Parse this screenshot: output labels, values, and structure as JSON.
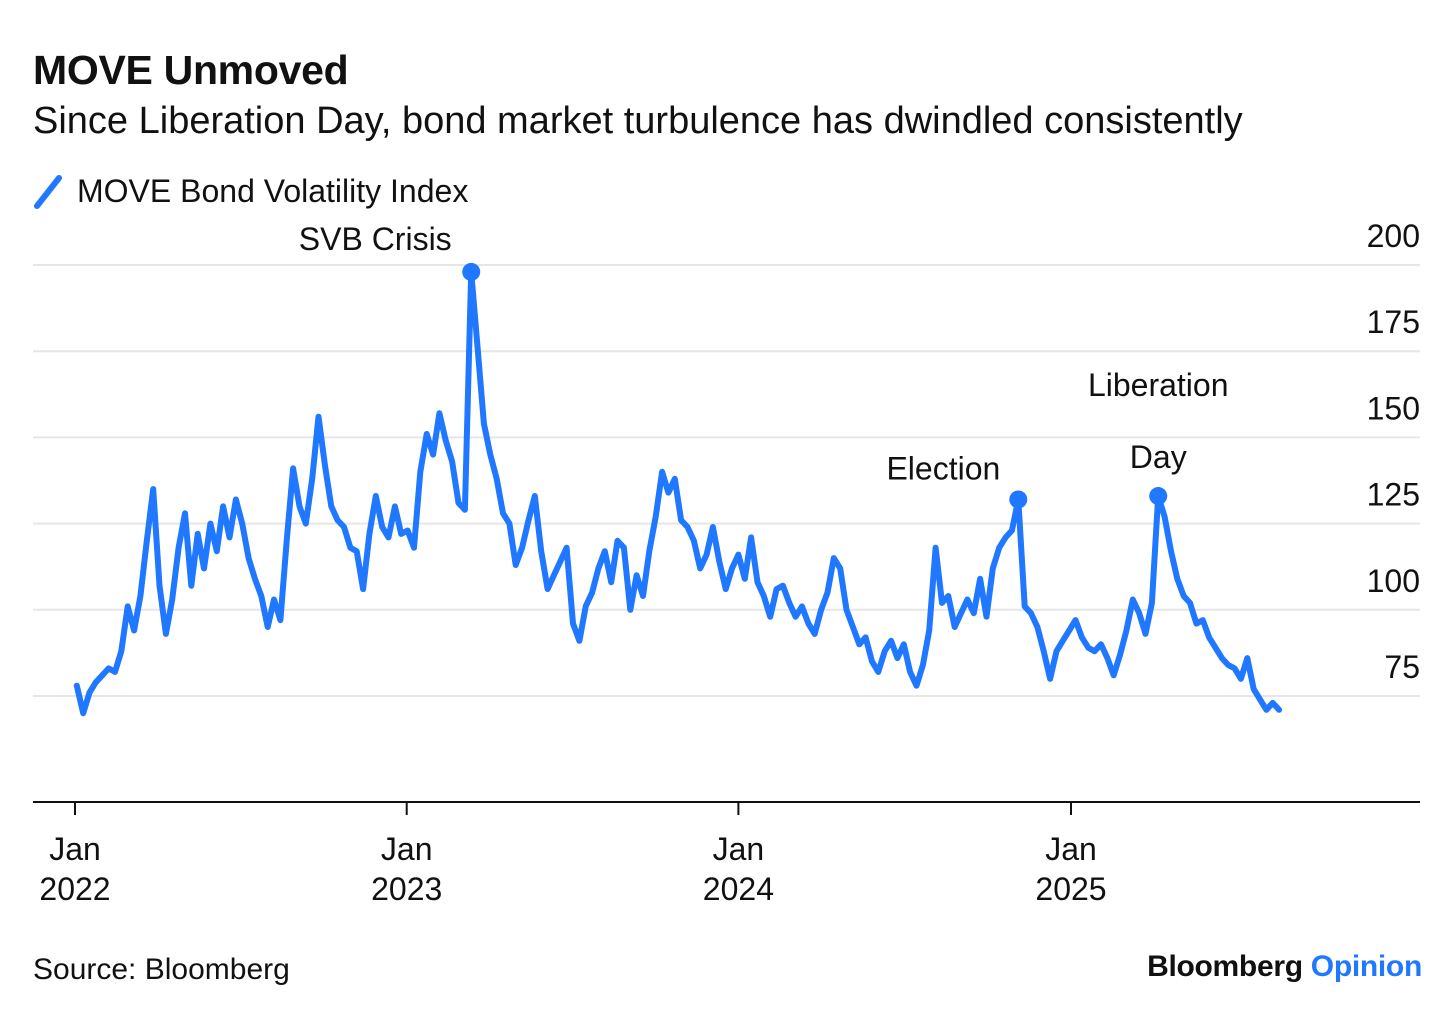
{
  "header": {
    "title": "MOVE Unmoved",
    "subtitle": "Since Liberation Day, bond market turbulence has dwindled consistently"
  },
  "footer": {
    "source": "Source: Bloomberg",
    "brand_main": "Bloomberg",
    "brand_accent": "Opinion"
  },
  "colors": {
    "series": "#1f78ff",
    "grid": "#e6e6e6",
    "axis": "#111111",
    "accent": "#1f78ff"
  },
  "chart_data": {
    "type": "line",
    "legend_position": "top-left",
    "grid": true,
    "ylim": [
      66,
      200
    ],
    "y_ticks": [
      75,
      100,
      125,
      150,
      175,
      200
    ],
    "x_range": [
      "2021-12-30",
      "2025-12-08"
    ],
    "x_ticks": [
      {
        "date": "2022-01-01",
        "month": "Jan",
        "year": "2022"
      },
      {
        "date": "2023-01-01",
        "month": "Jan",
        "year": "2023"
      },
      {
        "date": "2024-01-01",
        "month": "Jan",
        "year": "2024"
      },
      {
        "date": "2025-01-01",
        "month": "Jan",
        "year": "2025"
      }
    ],
    "series": [
      {
        "name": "MOVE Bond Volatility Index",
        "points": [
          [
            "2022-01-03",
            78
          ],
          [
            "2022-01-10",
            70
          ],
          [
            "2022-01-17",
            76
          ],
          [
            "2022-01-24",
            79
          ],
          [
            "2022-01-31",
            81
          ],
          [
            "2022-02-07",
            83
          ],
          [
            "2022-02-14",
            82
          ],
          [
            "2022-02-21",
            88
          ],
          [
            "2022-02-28",
            101
          ],
          [
            "2022-03-07",
            94
          ],
          [
            "2022-03-14",
            104
          ],
          [
            "2022-03-21",
            120
          ],
          [
            "2022-03-28",
            135
          ],
          [
            "2022-04-04",
            107
          ],
          [
            "2022-04-11",
            93
          ],
          [
            "2022-04-18",
            103
          ],
          [
            "2022-04-25",
            118
          ],
          [
            "2022-05-02",
            128
          ],
          [
            "2022-05-09",
            107
          ],
          [
            "2022-05-16",
            122
          ],
          [
            "2022-05-23",
            112
          ],
          [
            "2022-05-30",
            125
          ],
          [
            "2022-06-06",
            117
          ],
          [
            "2022-06-13",
            130
          ],
          [
            "2022-06-20",
            121
          ],
          [
            "2022-06-27",
            132
          ],
          [
            "2022-07-04",
            125
          ],
          [
            "2022-07-11",
            115
          ],
          [
            "2022-07-18",
            109
          ],
          [
            "2022-07-25",
            104
          ],
          [
            "2022-08-01",
            95
          ],
          [
            "2022-08-08",
            103
          ],
          [
            "2022-08-15",
            97
          ],
          [
            "2022-08-22",
            120
          ],
          [
            "2022-08-29",
            141
          ],
          [
            "2022-09-05",
            130
          ],
          [
            "2022-09-12",
            125
          ],
          [
            "2022-09-19",
            138
          ],
          [
            "2022-09-26",
            156
          ],
          [
            "2022-10-03",
            142
          ],
          [
            "2022-10-10",
            130
          ],
          [
            "2022-10-17",
            126
          ],
          [
            "2022-10-24",
            124
          ],
          [
            "2022-10-31",
            118
          ],
          [
            "2022-11-07",
            117
          ],
          [
            "2022-11-14",
            106
          ],
          [
            "2022-11-21",
            122
          ],
          [
            "2022-11-28",
            133
          ],
          [
            "2022-12-05",
            124
          ],
          [
            "2022-12-12",
            121
          ],
          [
            "2022-12-19",
            130
          ],
          [
            "2022-12-26",
            122
          ],
          [
            "2023-01-02",
            123
          ],
          [
            "2023-01-09",
            118
          ],
          [
            "2023-01-16",
            140
          ],
          [
            "2023-01-23",
            151
          ],
          [
            "2023-01-30",
            145
          ],
          [
            "2023-02-06",
            157
          ],
          [
            "2023-02-13",
            149
          ],
          [
            "2023-02-20",
            143
          ],
          [
            "2023-02-27",
            131
          ],
          [
            "2023-03-06",
            129
          ],
          [
            "2023-03-13",
            198
          ],
          [
            "2023-03-20",
            176
          ],
          [
            "2023-03-27",
            154
          ],
          [
            "2023-04-03",
            145
          ],
          [
            "2023-04-10",
            138
          ],
          [
            "2023-04-17",
            128
          ],
          [
            "2023-04-24",
            125
          ],
          [
            "2023-05-01",
            113
          ],
          [
            "2023-05-08",
            118
          ],
          [
            "2023-05-15",
            126
          ],
          [
            "2023-05-22",
            133
          ],
          [
            "2023-05-29",
            117
          ],
          [
            "2023-06-05",
            106
          ],
          [
            "2023-06-12",
            110
          ],
          [
            "2023-06-19",
            114
          ],
          [
            "2023-06-26",
            118
          ],
          [
            "2023-07-03",
            96
          ],
          [
            "2023-07-10",
            91
          ],
          [
            "2023-07-17",
            101
          ],
          [
            "2023-07-24",
            105
          ],
          [
            "2023-07-31",
            112
          ],
          [
            "2023-08-07",
            117
          ],
          [
            "2023-08-14",
            108
          ],
          [
            "2023-08-21",
            120
          ],
          [
            "2023-08-28",
            118
          ],
          [
            "2023-09-04",
            100
          ],
          [
            "2023-09-11",
            110
          ],
          [
            "2023-09-18",
            104
          ],
          [
            "2023-09-25",
            117
          ],
          [
            "2023-10-02",
            127
          ],
          [
            "2023-10-09",
            140
          ],
          [
            "2023-10-16",
            134
          ],
          [
            "2023-10-23",
            138
          ],
          [
            "2023-10-30",
            126
          ],
          [
            "2023-11-06",
            124
          ],
          [
            "2023-11-13",
            120
          ],
          [
            "2023-11-20",
            112
          ],
          [
            "2023-11-27",
            116
          ],
          [
            "2023-12-04",
            124
          ],
          [
            "2023-12-11",
            114
          ],
          [
            "2023-12-18",
            106
          ],
          [
            "2023-12-25",
            112
          ],
          [
            "2024-01-01",
            116
          ],
          [
            "2024-01-08",
            109
          ],
          [
            "2024-01-15",
            121
          ],
          [
            "2024-01-22",
            108
          ],
          [
            "2024-01-29",
            104
          ],
          [
            "2024-02-05",
            98
          ],
          [
            "2024-02-12",
            106
          ],
          [
            "2024-02-19",
            107
          ],
          [
            "2024-02-26",
            102
          ],
          [
            "2024-03-04",
            98
          ],
          [
            "2024-03-11",
            101
          ],
          [
            "2024-03-18",
            96
          ],
          [
            "2024-03-25",
            93
          ],
          [
            "2024-04-01",
            100
          ],
          [
            "2024-04-08",
            105
          ],
          [
            "2024-04-15",
            115
          ],
          [
            "2024-04-22",
            112
          ],
          [
            "2024-04-29",
            100
          ],
          [
            "2024-05-06",
            95
          ],
          [
            "2024-05-13",
            90
          ],
          [
            "2024-05-20",
            92
          ],
          [
            "2024-05-27",
            85
          ],
          [
            "2024-06-03",
            82
          ],
          [
            "2024-06-10",
            88
          ],
          [
            "2024-06-17",
            91
          ],
          [
            "2024-06-24",
            86
          ],
          [
            "2024-07-01",
            90
          ],
          [
            "2024-07-08",
            82
          ],
          [
            "2024-07-15",
            78
          ],
          [
            "2024-07-22",
            84
          ],
          [
            "2024-07-29",
            94
          ],
          [
            "2024-08-05",
            118
          ],
          [
            "2024-08-12",
            102
          ],
          [
            "2024-08-19",
            104
          ],
          [
            "2024-08-26",
            95
          ],
          [
            "2024-09-02",
            99
          ],
          [
            "2024-09-09",
            103
          ],
          [
            "2024-09-16",
            99
          ],
          [
            "2024-09-23",
            109
          ],
          [
            "2024-09-30",
            98
          ],
          [
            "2024-10-07",
            112
          ],
          [
            "2024-10-14",
            118
          ],
          [
            "2024-10-21",
            121
          ],
          [
            "2024-10-28",
            123
          ],
          [
            "2024-11-04",
            132
          ],
          [
            "2024-11-11",
            101
          ],
          [
            "2024-11-18",
            99
          ],
          [
            "2024-11-25",
            95
          ],
          [
            "2024-12-02",
            88
          ],
          [
            "2024-12-09",
            80
          ],
          [
            "2024-12-16",
            88
          ],
          [
            "2024-12-23",
            91
          ],
          [
            "2024-12-30",
            94
          ],
          [
            "2025-01-06",
            97
          ],
          [
            "2025-01-13",
            92
          ],
          [
            "2025-01-20",
            89
          ],
          [
            "2025-01-27",
            88
          ],
          [
            "2025-02-03",
            90
          ],
          [
            "2025-02-10",
            86
          ],
          [
            "2025-02-17",
            81
          ],
          [
            "2025-02-24",
            87
          ],
          [
            "2025-03-03",
            94
          ],
          [
            "2025-03-10",
            103
          ],
          [
            "2025-03-17",
            99
          ],
          [
            "2025-03-24",
            93
          ],
          [
            "2025-03-31",
            102
          ],
          [
            "2025-04-07",
            133
          ],
          [
            "2025-04-14",
            127
          ],
          [
            "2025-04-21",
            117
          ],
          [
            "2025-04-28",
            109
          ],
          [
            "2025-05-05",
            104
          ],
          [
            "2025-05-12",
            102
          ],
          [
            "2025-05-19",
            96
          ],
          [
            "2025-05-26",
            97
          ],
          [
            "2025-06-02",
            92
          ],
          [
            "2025-06-09",
            89
          ],
          [
            "2025-06-16",
            86
          ],
          [
            "2025-06-23",
            84
          ],
          [
            "2025-06-30",
            83
          ],
          [
            "2025-07-07",
            80
          ],
          [
            "2025-07-14",
            86
          ],
          [
            "2025-07-21",
            77
          ],
          [
            "2025-07-28",
            74
          ],
          [
            "2025-08-04",
            71
          ],
          [
            "2025-08-11",
            73
          ],
          [
            "2025-08-18",
            71
          ]
        ]
      }
    ],
    "annotations": [
      {
        "id": "svb",
        "label": "SVB Crisis",
        "date": "2023-03-13",
        "value": 198
      },
      {
        "id": "election",
        "label": "Election",
        "date": "2024-11-04",
        "value": 132
      },
      {
        "id": "liberation",
        "label": "Liberation Day",
        "label_lines": [
          "Liberation",
          "Day"
        ],
        "date": "2025-04-07",
        "value": 133
      }
    ]
  }
}
